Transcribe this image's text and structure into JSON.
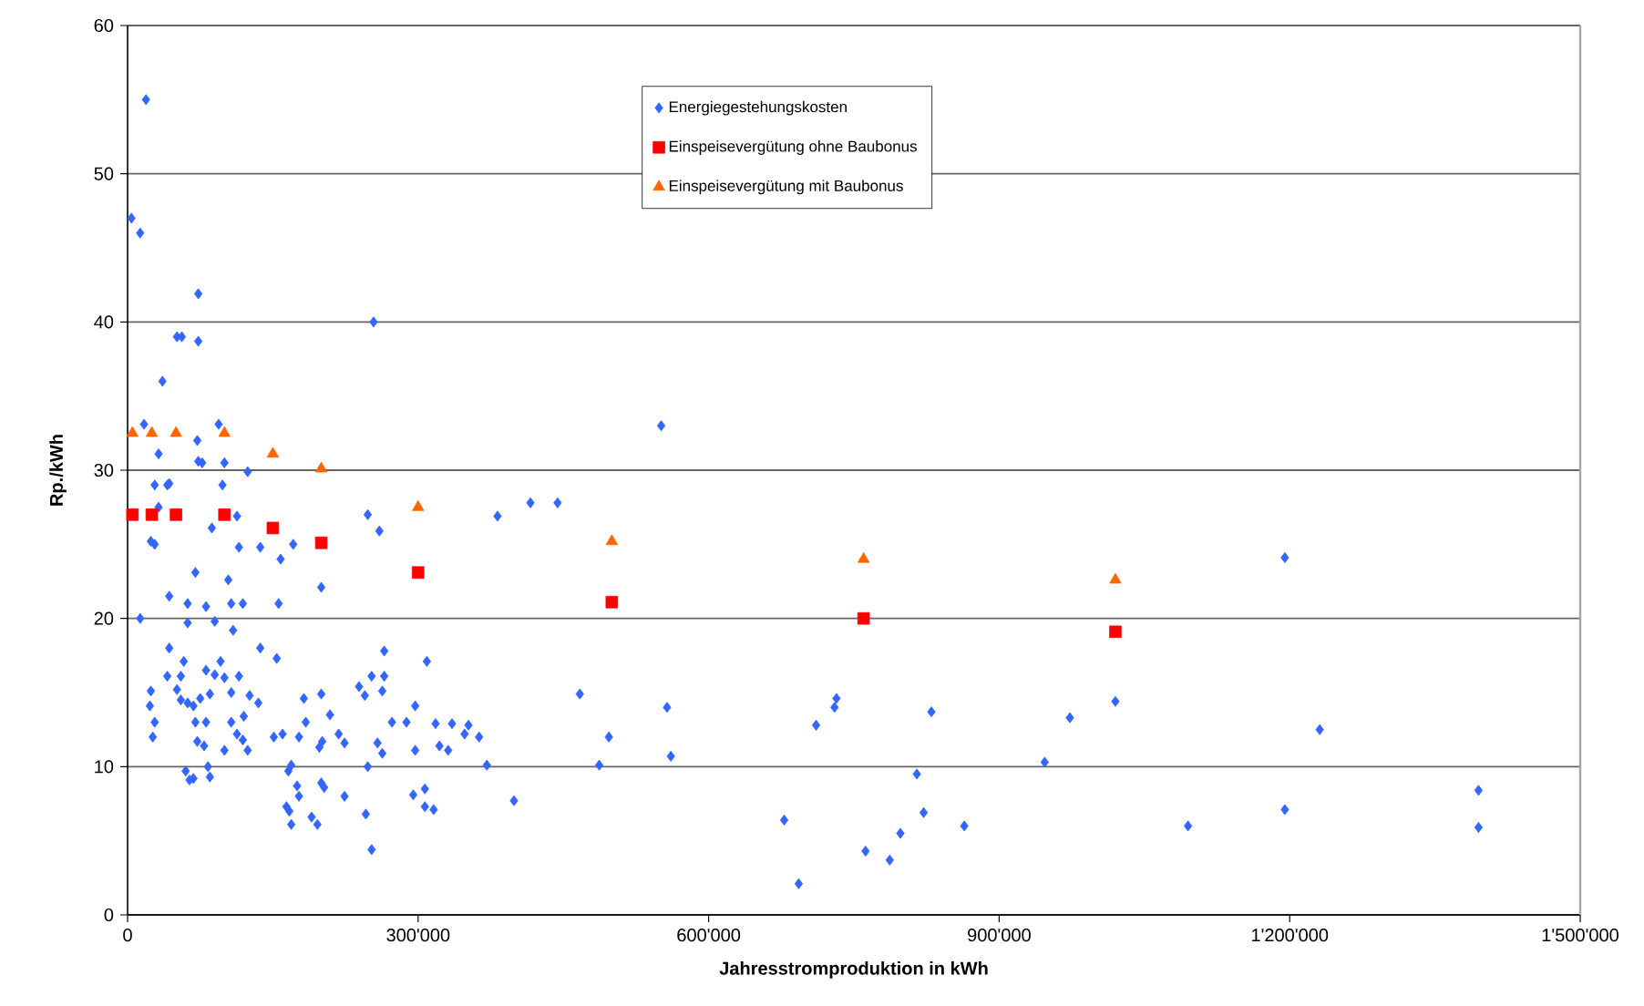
{
  "chart_data": {
    "type": "scatter",
    "xlabel": "Jahresstromproduktion in kWh",
    "ylabel": "Rp./kWh",
    "xlim": [
      0,
      1500000
    ],
    "ylim": [
      0,
      60
    ],
    "xticks": [
      0,
      {
        "value": 300000,
        "label": "300'000"
      },
      {
        "value": 600000,
        "label": "600'000"
      },
      {
        "value": 900000,
        "label": "900'000"
      },
      {
        "value": 1200000,
        "label": "1'200'000"
      },
      {
        "value": 1500000,
        "label": "1'500'000"
      }
    ],
    "yticks": [
      0,
      10,
      20,
      30,
      40,
      50,
      60
    ],
    "grid": "y",
    "legend": "top",
    "series": [
      {
        "name": "Energiegestehungskosten",
        "color": "#3366ff",
        "marker": "diamond",
        "x": [
          19000,
          4000,
          13000,
          73000,
          51000,
          56000,
          73000,
          254000,
          36000,
          17000,
          94000,
          32000,
          72000,
          73000,
          77000,
          100000,
          124000,
          28000,
          41000,
          43000,
          98000,
          32000,
          113000,
          248000,
          87000,
          260000,
          24000,
          28000,
          115000,
          137000,
          171000,
          158000,
          70000,
          104000,
          200000,
          43000,
          62000,
          81000,
          107000,
          119000,
          156000,
          13000,
          62000,
          90000,
          109000,
          43000,
          137000,
          154000,
          58000,
          96000,
          265000,
          309000,
          41000,
          55000,
          81000,
          90000,
          100000,
          115000,
          252000,
          265000,
          24000,
          23000,
          51000,
          55000,
          75000,
          85000,
          107000,
          126000,
          135000,
          239000,
          245000,
          263000,
          182000,
          200000,
          28000,
          62000,
          68000,
          70000,
          81000,
          107000,
          120000,
          184000,
          209000,
          273000,
          288000,
          297000,
          318000,
          335000,
          352000,
          26000,
          72000,
          79000,
          113000,
          119000,
          151000,
          160000,
          177000,
          198000,
          201000,
          218000,
          224000,
          258000,
          263000,
          100000,
          124000,
          297000,
          322000,
          331000,
          348000,
          60000,
          68000,
          64000,
          83000,
          85000,
          169000,
          166000,
          248000,
          175000,
          177000,
          200000,
          203000,
          224000,
          295000,
          307000,
          307000,
          316000,
          164000,
          167000,
          190000,
          196000,
          169000,
          246000,
          252000,
          551000,
          382000,
          416000,
          444000,
          467000,
          557000,
          497000,
          487000,
          561000,
          371000,
          399000,
          363000,
          678000,
          693000,
          711000,
          730000,
          732000,
          762000,
          787000,
          798000,
          815000,
          822000,
          830000,
          864000,
          947000,
          973000,
          1020000,
          1095000,
          1195000,
          1195000,
          1231000,
          1395000,
          1395000
        ],
        "values": [
          55.0,
          47.0,
          46.0,
          41.9,
          39.0,
          39.0,
          38.7,
          40.0,
          36.0,
          33.1,
          33.1,
          31.1,
          32.0,
          30.6,
          30.5,
          30.5,
          29.9,
          29.0,
          29.0,
          29.1,
          29.0,
          27.5,
          26.9,
          27.0,
          26.1,
          25.9,
          25.2,
          25.0,
          24.8,
          24.8,
          25.0,
          24.0,
          23.1,
          22.6,
          22.1,
          21.5,
          21.0,
          20.8,
          21.0,
          21.0,
          21.0,
          20.0,
          19.7,
          19.8,
          19.2,
          18.0,
          18.0,
          17.3,
          17.1,
          17.1,
          17.8,
          17.1,
          16.1,
          16.1,
          16.5,
          16.2,
          16.0,
          16.1,
          16.1,
          16.1,
          15.1,
          14.1,
          15.2,
          14.5,
          14.6,
          14.9,
          15.0,
          14.8,
          14.3,
          15.4,
          14.8,
          15.1,
          14.6,
          14.9,
          13.0,
          14.3,
          14.1,
          13.0,
          13.0,
          13.0,
          13.4,
          13.0,
          13.5,
          13.0,
          13.0,
          14.1,
          12.9,
          12.9,
          12.8,
          12.0,
          11.7,
          11.4,
          12.2,
          11.8,
          12.0,
          12.2,
          12.0,
          11.3,
          11.7,
          12.2,
          11.6,
          11.6,
          10.9,
          11.1,
          11.1,
          11.1,
          11.4,
          11.1,
          12.2,
          9.7,
          9.2,
          9.1,
          10.0,
          9.3,
          10.1,
          9.7,
          10.0,
          8.7,
          8.0,
          8.9,
          8.6,
          8.0,
          8.1,
          8.5,
          7.3,
          7.1,
          7.3,
          7.0,
          6.6,
          6.1,
          6.1,
          6.8,
          4.4,
          33.0,
          26.9,
          27.8,
          27.8,
          14.9,
          14.0,
          12.0,
          10.1,
          10.7,
          10.1,
          7.7,
          12.0,
          6.4,
          2.1,
          12.8,
          14.0,
          14.6,
          4.3,
          3.7,
          5.5,
          9.5,
          6.9,
          13.7,
          6.0,
          10.3,
          13.3,
          14.4,
          6.0,
          24.1,
          7.1,
          12.5,
          8.4,
          5.9
        ]
      },
      {
        "name": "Einspeisevergütung ohne Baubonus",
        "color": "#ff0000",
        "marker": "square",
        "x": [
          5000,
          25000,
          50000,
          100000,
          150000,
          200000,
          300000,
          500000,
          760000,
          1020000
        ],
        "values": [
          27.0,
          27.0,
          27.0,
          27.0,
          26.1,
          25.1,
          23.1,
          21.1,
          20.0,
          19.1
        ]
      },
      {
        "name": "Einspeisevergütung mit Baubonus",
        "color": "#ff6600",
        "marker": "triangle",
        "x": [
          5000,
          25000,
          50000,
          100000,
          150000,
          200000,
          300000,
          500000,
          760000,
          1020000
        ],
        "values": [
          32.5,
          32.5,
          32.5,
          32.5,
          31.1,
          30.1,
          27.5,
          25.2,
          24.0,
          22.6
        ]
      }
    ]
  }
}
